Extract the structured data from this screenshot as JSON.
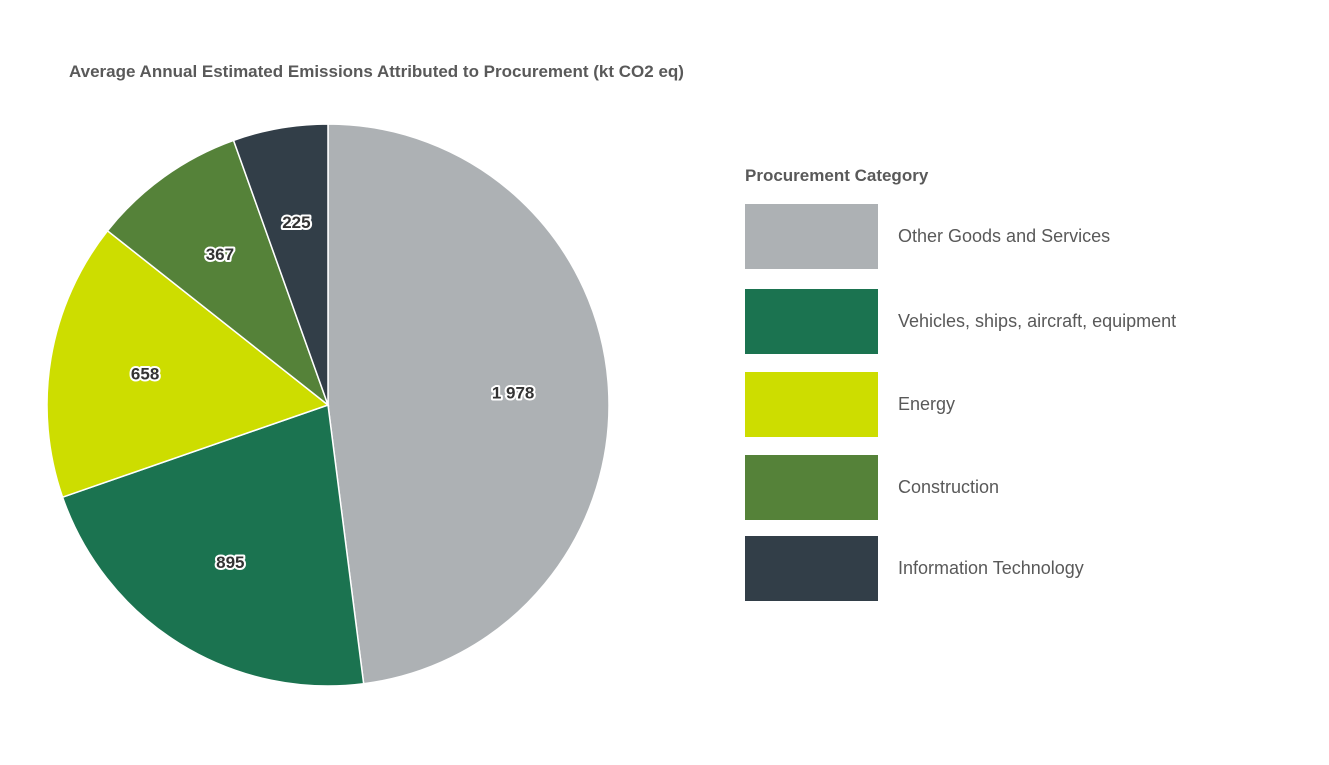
{
  "chart_data": {
    "type": "pie",
    "title": "Average Annual Estimated Emissions Attributed to Procurement (kt CO2 eq)",
    "legend": {
      "title": "Procurement Category",
      "placement": "right"
    },
    "slices": [
      {
        "label": "Other Goods and Services",
        "value": 1978,
        "display": "1 978",
        "color": "#adb1b4"
      },
      {
        "label": "Vehicles, ships, aircraft, equipment",
        "value": 895,
        "display": "895",
        "color": "#1b7350"
      },
      {
        "label": "Energy",
        "value": 658,
        "display": "658",
        "color": "#cddd00"
      },
      {
        "label": "Construction",
        "value": 367,
        "display": "367",
        "color": "#558239"
      },
      {
        "label": "Information Technology",
        "value": 225,
        "display": "225",
        "color": "#323e48"
      }
    ]
  }
}
